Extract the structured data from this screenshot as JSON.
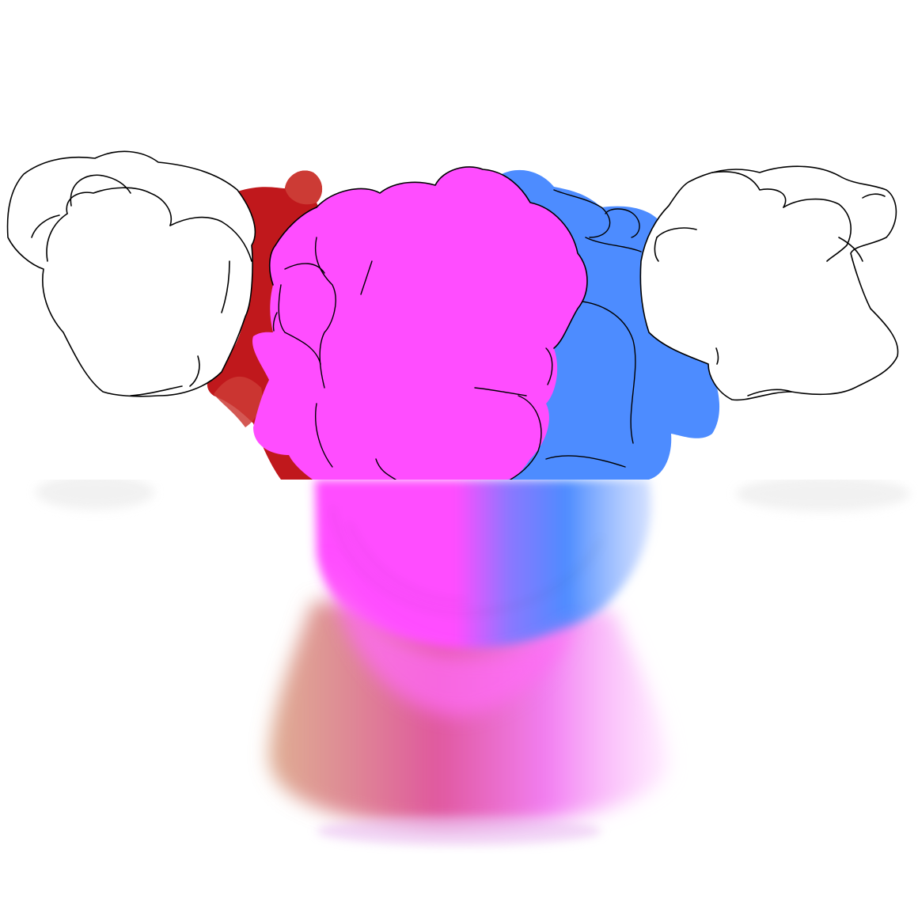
{
  "figure": {
    "description_visible_text": "",
    "colors": {
      "background": "#ffffff",
      "left_domain": "#c0181c",
      "left_domain_light": "#cc3b35",
      "center_domain": "#ff4dff",
      "right_domain": "#4d8cff",
      "outlined_domains_fill": "#ffffff",
      "outline": "#000000",
      "stalk_tan": "#d4936f",
      "stalk_pink": "#e0589e"
    },
    "regions": [
      {
        "name": "left-white-domain",
        "fill": "#ffffff"
      },
      {
        "name": "left-red-domain",
        "fill": "#c0181c"
      },
      {
        "name": "center-magenta-domain",
        "fill": "#ff4dff"
      },
      {
        "name": "right-blue-domain",
        "fill": "#4d8cff"
      },
      {
        "name": "right-white-domain",
        "fill": "#ffffff"
      },
      {
        "name": "blurred-stalk",
        "fill": "#e0589e"
      }
    ]
  }
}
